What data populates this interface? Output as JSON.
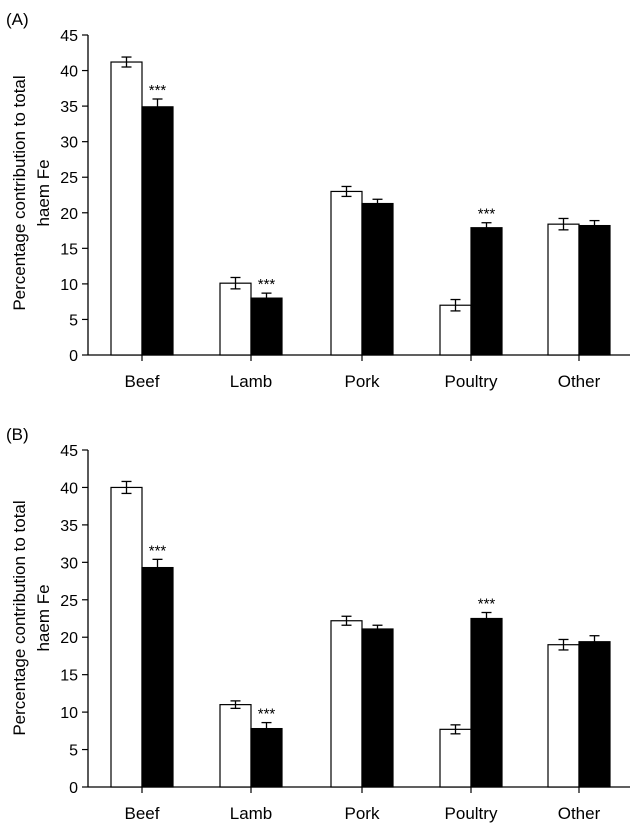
{
  "chart_data": [
    {
      "panel_label": "(A)",
      "type": "bar",
      "title": "",
      "xlabel": "",
      "ylabel_lines": [
        "Percentage contribution to total",
        "haem Fe"
      ],
      "ylim": [
        0,
        45
      ],
      "yticks": [
        "0",
        "5",
        "10",
        "15",
        "20",
        "25",
        "30",
        "35",
        "40",
        "45"
      ],
      "categories": [
        "Beef",
        "Lamb",
        "Pork",
        "Poultry",
        "Other"
      ],
      "series": [
        {
          "fill": "#ffffff",
          "values": [
            41.2,
            10.1,
            23.0,
            7.0,
            18.4
          ],
          "errors": [
            0.7,
            0.8,
            0.7,
            0.8,
            0.8
          ]
        },
        {
          "fill": "#000000",
          "values": [
            34.9,
            8.0,
            21.3,
            17.9,
            18.2
          ],
          "errors": [
            1.1,
            0.7,
            0.6,
            0.7,
            0.7
          ]
        }
      ],
      "annotations": [
        {
          "category": "Beef",
          "series": 1,
          "text": "***"
        },
        {
          "category": "Lamb",
          "series": 1,
          "text": "***"
        },
        {
          "category": "Poultry",
          "series": 1,
          "text": "***"
        }
      ],
      "grid": false,
      "legend": "none"
    },
    {
      "panel_label": "(B)",
      "type": "bar",
      "title": "",
      "xlabel": "",
      "ylabel_lines": [
        "Percentage contribution to total",
        "haem Fe"
      ],
      "ylim": [
        0,
        45
      ],
      "yticks": [
        "0",
        "5",
        "10",
        "15",
        "20",
        "25",
        "30",
        "35",
        "40",
        "45"
      ],
      "categories": [
        "Beef",
        "Lamb",
        "Pork",
        "Poultry",
        "Other"
      ],
      "series": [
        {
          "fill": "#ffffff",
          "values": [
            40.0,
            11.0,
            22.2,
            7.7,
            19.0
          ],
          "errors": [
            0.8,
            0.5,
            0.6,
            0.6,
            0.7
          ]
        },
        {
          "fill": "#000000",
          "values": [
            29.3,
            7.8,
            21.1,
            22.5,
            19.4
          ],
          "errors": [
            1.1,
            0.8,
            0.5,
            0.8,
            0.8
          ]
        }
      ],
      "annotations": [
        {
          "category": "Beef",
          "series": 1,
          "text": "***"
        },
        {
          "category": "Lamb",
          "series": 1,
          "text": "***"
        },
        {
          "category": "Poultry",
          "series": 1,
          "text": "***"
        }
      ],
      "grid": false,
      "legend": "none"
    }
  ]
}
